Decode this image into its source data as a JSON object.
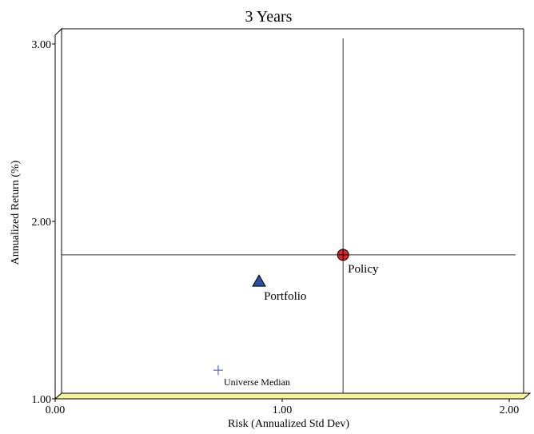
{
  "chart_data": {
    "type": "scatter",
    "title": "3 Years",
    "xlabel": "Risk (Annualized Std Dev)",
    "ylabel": "Annualized Return (%)",
    "xlim": [
      0,
      2
    ],
    "ylim": [
      1,
      3
    ],
    "x_ticks": [
      "0.00",
      "1.00",
      "2.00"
    ],
    "y_ticks": [
      "1.00",
      "2.00",
      "3.00"
    ],
    "points": [
      {
        "name": "Policy",
        "x": 1.24,
        "y": 1.78,
        "marker": "circle",
        "color": "#e0242b"
      },
      {
        "name": "Portfolio",
        "x": 0.87,
        "y": 1.63,
        "marker": "triangle",
        "color": "#2b4ea3"
      },
      {
        "name": "Universe Median",
        "x": 0.69,
        "y": 1.13,
        "marker": "plus",
        "color": "#5a6fb5"
      }
    ],
    "crosshair": {
      "x": 1.24,
      "y": 1.78
    },
    "floor_color": "#f6f29a"
  }
}
